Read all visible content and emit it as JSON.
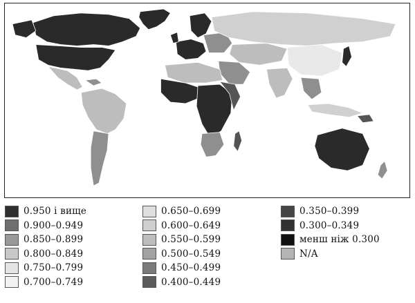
{
  "legend": {
    "columns": [
      [
        {
          "label": "0.950 і вище",
          "color": "#2f2f2f"
        },
        {
          "label": "0.900–0.949",
          "color": "#6e6e6e"
        },
        {
          "label": "0.850–0.899",
          "color": "#999999"
        },
        {
          "label": "0.800–0.849",
          "color": "#c8c8c8"
        },
        {
          "label": "0.750–0.799",
          "color": "#e4e4e4"
        },
        {
          "label": "0.700–0.749",
          "color": "#f2f2f2"
        }
      ],
      [
        {
          "label": "0.650–0.699",
          "color": "#dedede"
        },
        {
          "label": "0.600–0.649",
          "color": "#cfcfcf"
        },
        {
          "label": "0.550–0.599",
          "color": "#bdbdbd"
        },
        {
          "label": "0.500–0.549",
          "color": "#a3a3a3"
        },
        {
          "label": "0.450–0.499",
          "color": "#7a7a7a"
        },
        {
          "label": "0.400–0.449",
          "color": "#5c5c5c"
        }
      ],
      [
        {
          "label": "0.350–0.399",
          "color": "#454545"
        },
        {
          "label": "0.300–0.349",
          "color": "#323232"
        },
        {
          "label": "менш ніж 0.300",
          "color": "#111111"
        },
        {
          "label": "N/A",
          "color": "#b5b5b5"
        }
      ]
    ]
  },
  "map": {
    "colors": {
      "very_dark": "#2a2a2a",
      "dark": "#555555",
      "medium": "#8f8f8f",
      "light": "#bdbdbd",
      "lighter": "#d0d0d0",
      "very_light": "#e9e9e9"
    }
  }
}
